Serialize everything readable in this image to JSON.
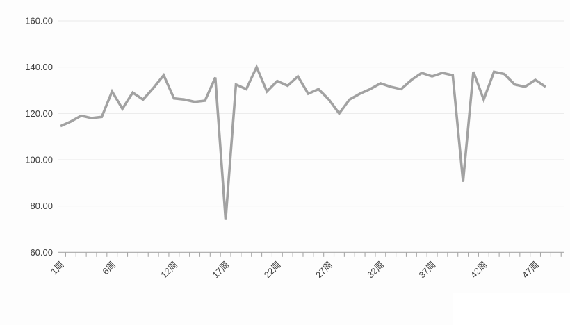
{
  "page": {
    "background_color": "#fdfdfd",
    "watermark_area_color": "#ffffff"
  },
  "chart_data": {
    "type": "line",
    "title": "",
    "xlabel": "",
    "ylabel": "",
    "x_unit_suffix": "周",
    "n_points": 48,
    "values": [
      114.5,
      116.5,
      119,
      118,
      118.5,
      129.5,
      122,
      129,
      126,
      131,
      136.5,
      126.5,
      126,
      125,
      125.5,
      135.5,
      74,
      132.5,
      130.5,
      140,
      129.5,
      134,
      132,
      136,
      128.5,
      130.5,
      126,
      120,
      126,
      128.5,
      130.5,
      133,
      131.5,
      130.5,
      134.5,
      137.5,
      136,
      137.5,
      136.5,
      90.5,
      138,
      126,
      138,
      137,
      132.5,
      131.5,
      134.5,
      131.5
    ],
    "x_tick_labels": [
      {
        "index": 0,
        "label": "1周"
      },
      {
        "index": 5,
        "label": "6周"
      },
      {
        "index": 11,
        "label": "12周"
      },
      {
        "index": 16,
        "label": "17周"
      },
      {
        "index": 21,
        "label": "22周"
      },
      {
        "index": 26,
        "label": "27周"
      },
      {
        "index": 31,
        "label": "32周"
      },
      {
        "index": 36,
        "label": "37周"
      },
      {
        "index": 41,
        "label": "42周"
      },
      {
        "index": 46,
        "label": "47周"
      }
    ],
    "ylim": [
      60,
      160
    ],
    "ytick_step": 20,
    "ytick_labels": [
      "160.00",
      "140.00",
      "120.00",
      "100.00",
      "80.00",
      "60.00"
    ],
    "grid": true,
    "legend_position": "none",
    "x_label_rotation_deg": 45,
    "colors": {
      "line": "#a2a2a2",
      "gridline": "#e9e9e9",
      "axis_line": "#a8a8a8",
      "tick": "#a8a8a8",
      "label_text": "#3d3d3d"
    },
    "line_width": 3.6
  }
}
